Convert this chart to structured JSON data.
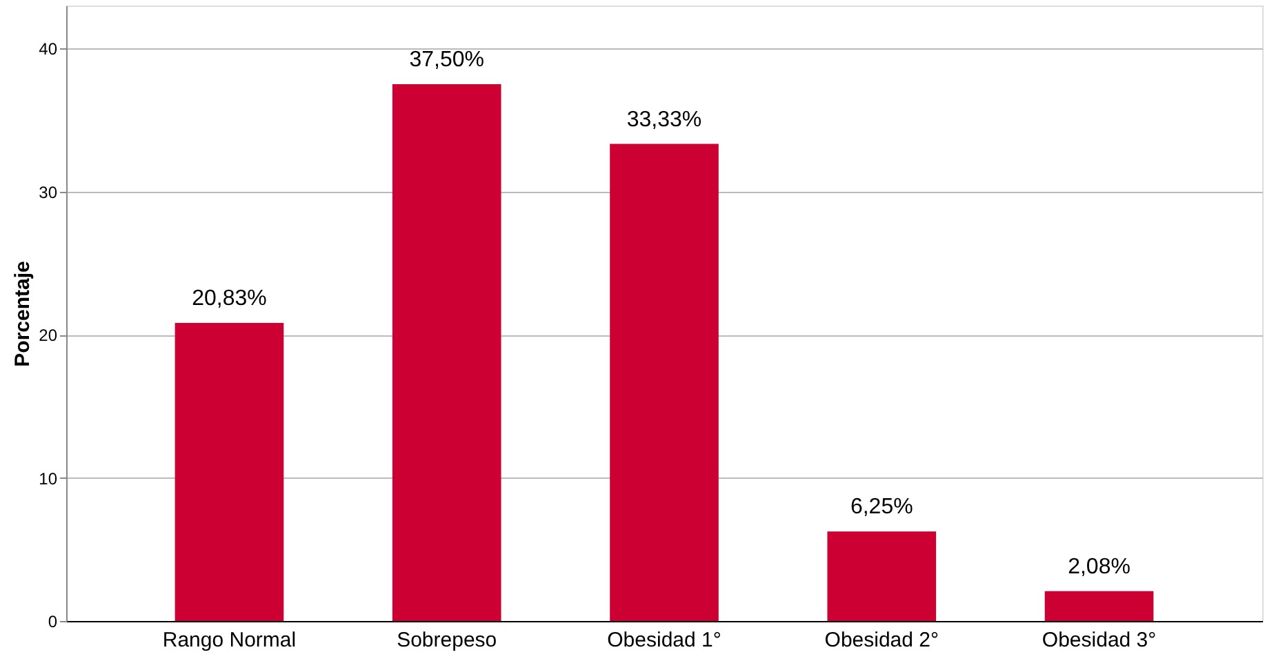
{
  "chart_data": {
    "type": "bar",
    "ylabel": "Porcentaje",
    "categories": [
      "Rango Normal",
      "Sobrepeso",
      "Obesidad 1°",
      "Obesidad 2°",
      "Obesidad 3°"
    ],
    "values": [
      20.83,
      37.5,
      33.33,
      6.25,
      2.08
    ],
    "value_labels": [
      "20,83%",
      "37,50%",
      "33,33%",
      "6,25%",
      "2,08%"
    ],
    "color": "#cc0033",
    "ylim": [
      0,
      43
    ],
    "yticks": [
      0,
      10,
      20,
      30,
      40
    ],
    "grid": "y"
  }
}
